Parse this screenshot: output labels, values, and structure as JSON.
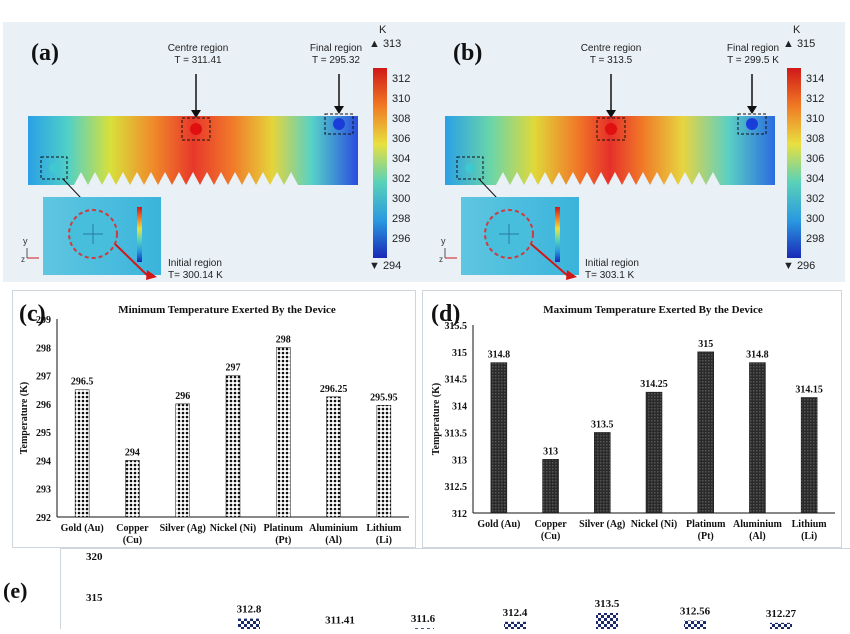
{
  "panel_a": {
    "label": "(a)",
    "centre": {
      "name": "Centre region",
      "temp": "T = 311.41"
    },
    "final": {
      "name": "Final region",
      "temp": "T = 295.32"
    },
    "initial": {
      "name": "Initial region",
      "temp": "T= 300.14 K"
    },
    "unit": "K",
    "max_label": "▲ 313",
    "min_label": "▼ 294",
    "ticks": [
      "312",
      "310",
      "308",
      "306",
      "304",
      "302",
      "300",
      "298",
      "296"
    ],
    "tick_values": [
      312,
      310,
      308,
      306,
      304,
      302,
      300,
      298,
      296
    ],
    "cmin": 294,
    "cmax": 313
  },
  "panel_b": {
    "label": "(b)",
    "centre": {
      "name": "Centre region",
      "temp": "T = 313.5"
    },
    "final": {
      "name": "Final region",
      "temp": "T = 299.5 K"
    },
    "initial": {
      "name": "Initial region",
      "temp": "T= 303.1 K"
    },
    "unit": "K",
    "max_label": "▲ 315",
    "min_label": "▼ 296",
    "ticks": [
      "314",
      "312",
      "310",
      "308",
      "306",
      "304",
      "302",
      "300",
      "298"
    ],
    "tick_values": [
      314,
      312,
      310,
      308,
      306,
      304,
      302,
      300,
      298
    ],
    "cmin": 296,
    "cmax": 315
  },
  "chart_data": [
    {
      "type": "bar",
      "label": "(c)",
      "title": "Minimum Temperature Exerted By the Device",
      "ylabel": "Temperature (K)",
      "categories": [
        "Gold (Au)",
        "Copper (Cu)",
        "Silver (Ag)",
        "Nickel (Ni)",
        "Platinum (Pt)",
        "Aluminium (Al)",
        "Lithium (Li)"
      ],
      "values": [
        296.5,
        294,
        296,
        297,
        298,
        296.25,
        295.95
      ],
      "value_labels": [
        "296.5",
        "294",
        "296",
        "297",
        "298",
        "296.25",
        "295.95"
      ],
      "ylim": [
        292,
        299
      ],
      "yticks": [
        "292",
        "293",
        "294",
        "295",
        "296",
        "297",
        "298",
        "299"
      ]
    },
    {
      "type": "bar",
      "label": "(d)",
      "title": "Maximum Temperature Exerted By the Device",
      "ylabel": "Temperature (K)",
      "categories": [
        "Gold (Au)",
        "Copper (Cu)",
        "Silver (Ag)",
        "Nickel (Ni)",
        "Platinum (Pt)",
        "Aluminium (Al)",
        "Lithium (Li)"
      ],
      "values": [
        314.8,
        313,
        313.5,
        314.25,
        315,
        314.8,
        314.15
      ],
      "value_labels": [
        "314.8",
        "313",
        "313.5",
        "314.25",
        "315",
        "314.8",
        "314.15"
      ],
      "ylim": [
        312,
        315.5
      ],
      "yticks": [
        "312",
        "312.5",
        "313",
        "313.5",
        "314",
        "314.5",
        "315",
        "315.5"
      ]
    },
    {
      "type": "bar",
      "label": "(e)",
      "values": [
        312.8,
        311.41,
        311.6,
        312.4,
        313.5,
        312.56,
        312.27
      ],
      "value_labels": [
        "312.8",
        "311.41",
        "311.6",
        "312.4",
        "313.5",
        "312.56",
        "312.27"
      ],
      "ylim_top": 320,
      "yticks": [
        "320",
        "315"
      ]
    }
  ]
}
